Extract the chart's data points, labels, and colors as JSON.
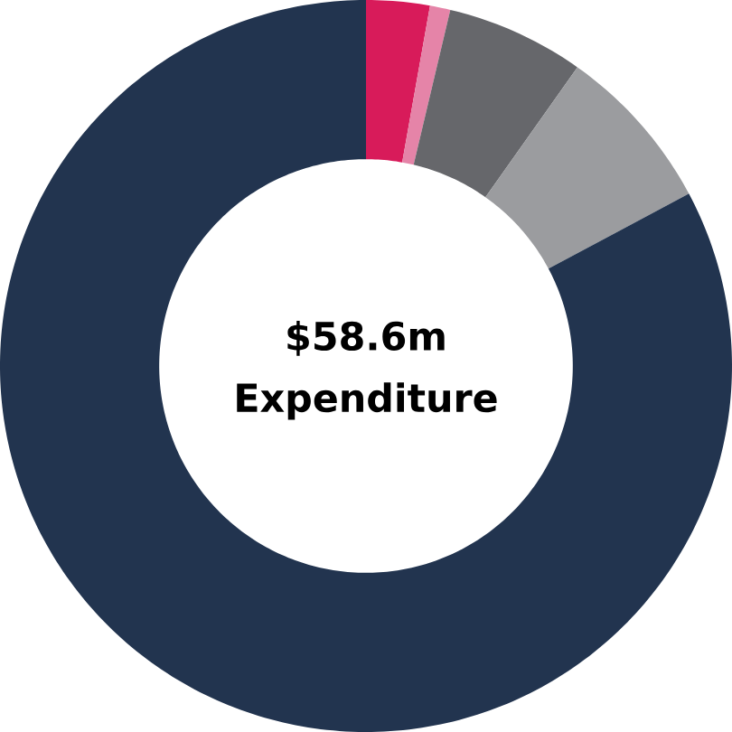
{
  "chart_data": {
    "type": "donut",
    "categories": [
      null,
      null,
      null,
      null,
      null
    ],
    "values": [
      2.8,
      0.9,
      6.1,
      7.4,
      82.8
    ],
    "colors": [
      "#d81b5a",
      "#e584a8",
      "#66676b",
      "#9b9c9f",
      "#22344f"
    ],
    "annotations": [
      "$58.6m",
      "Expenditure"
    ]
  }
}
